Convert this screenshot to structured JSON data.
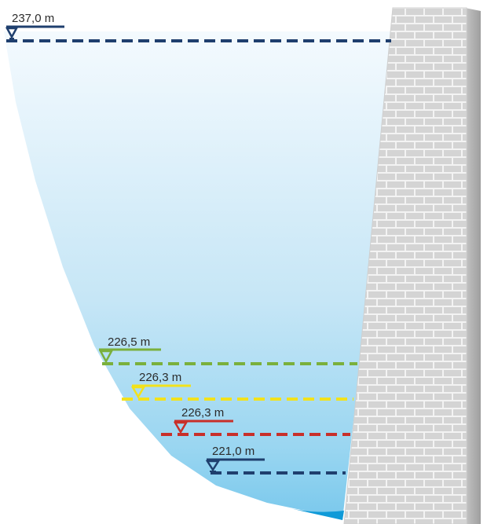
{
  "levels": [
    {
      "id": "top",
      "label": "237,0 m",
      "color": "#1f3f6e"
    },
    {
      "id": "green",
      "label": "226,5 m",
      "color": "#7ab03c"
    },
    {
      "id": "yellow",
      "label": "226,3 m",
      "color": "#f2e21c"
    },
    {
      "id": "red",
      "label": "226,3 m",
      "color": "#c8302a"
    },
    {
      "id": "bottom",
      "label": "221,0 m",
      "color": "#1f3f6e"
    }
  ],
  "colors": {
    "water_top": "#f4fafe",
    "water_bottom": "#79c8ec",
    "water_deep": "#0f9ad8",
    "wall_face": "#d6d6d6",
    "wall_mortar": "#f3f3f3",
    "wall_side": "#b8b8b8"
  }
}
